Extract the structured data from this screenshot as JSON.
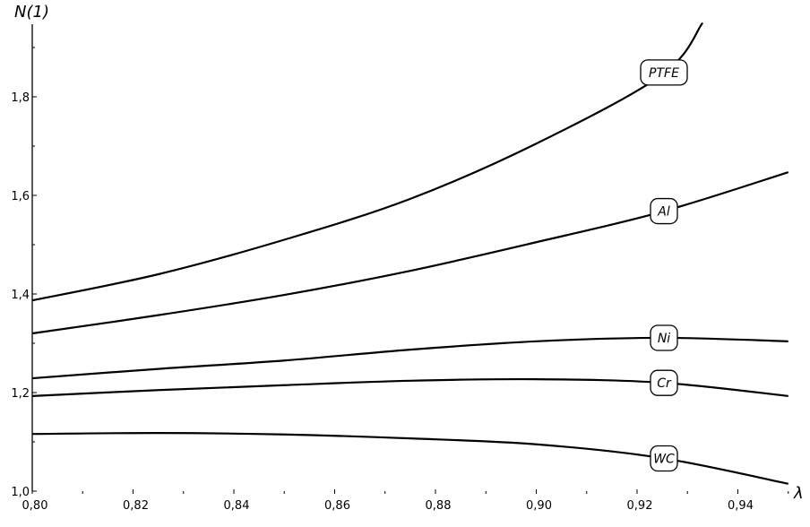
{
  "chart_data": {
    "type": "line",
    "title": "",
    "xlabel": "λ",
    "ylabel": "N(1)",
    "xlim": [
      0.8,
      0.95
    ],
    "ylim": [
      1.0,
      1.95
    ],
    "grid": false,
    "legend": "inline labels near the right end of each curve",
    "x_ticks": [
      "0,80",
      "0,82",
      "0,84",
      "0,86",
      "0,88",
      "0,90",
      "0,92",
      "0,94"
    ],
    "y_ticks": [
      "1,0",
      "1,2",
      "1,4",
      "1,6",
      "1,8"
    ],
    "series": [
      {
        "name": "PTFE",
        "x": [
          0.8,
          0.825,
          0.85,
          0.875,
          0.9,
          0.925,
          0.933
        ],
        "y": [
          1.387,
          1.44,
          1.51,
          1.593,
          1.705,
          1.845,
          1.95
        ]
      },
      {
        "name": "Al",
        "x": [
          0.8,
          0.825,
          0.85,
          0.875,
          0.9,
          0.925,
          0.95
        ],
        "y": [
          1.32,
          1.357,
          1.398,
          1.447,
          1.505,
          1.567,
          1.647
        ]
      },
      {
        "name": "Ni",
        "x": [
          0.8,
          0.825,
          0.85,
          0.875,
          0.9,
          0.925,
          0.95
        ],
        "y": [
          1.229,
          1.248,
          1.265,
          1.287,
          1.304,
          1.311,
          1.304
        ]
      },
      {
        "name": "Cr",
        "x": [
          0.8,
          0.825,
          0.85,
          0.875,
          0.9,
          0.925,
          0.95
        ],
        "y": [
          1.193,
          1.205,
          1.215,
          1.224,
          1.227,
          1.22,
          1.193
        ]
      },
      {
        "name": "WC",
        "x": [
          0.8,
          0.825,
          0.85,
          0.875,
          0.9,
          0.925,
          0.95
        ],
        "y": [
          1.116,
          1.118,
          1.115,
          1.107,
          1.095,
          1.067,
          1.015
        ]
      }
    ]
  }
}
